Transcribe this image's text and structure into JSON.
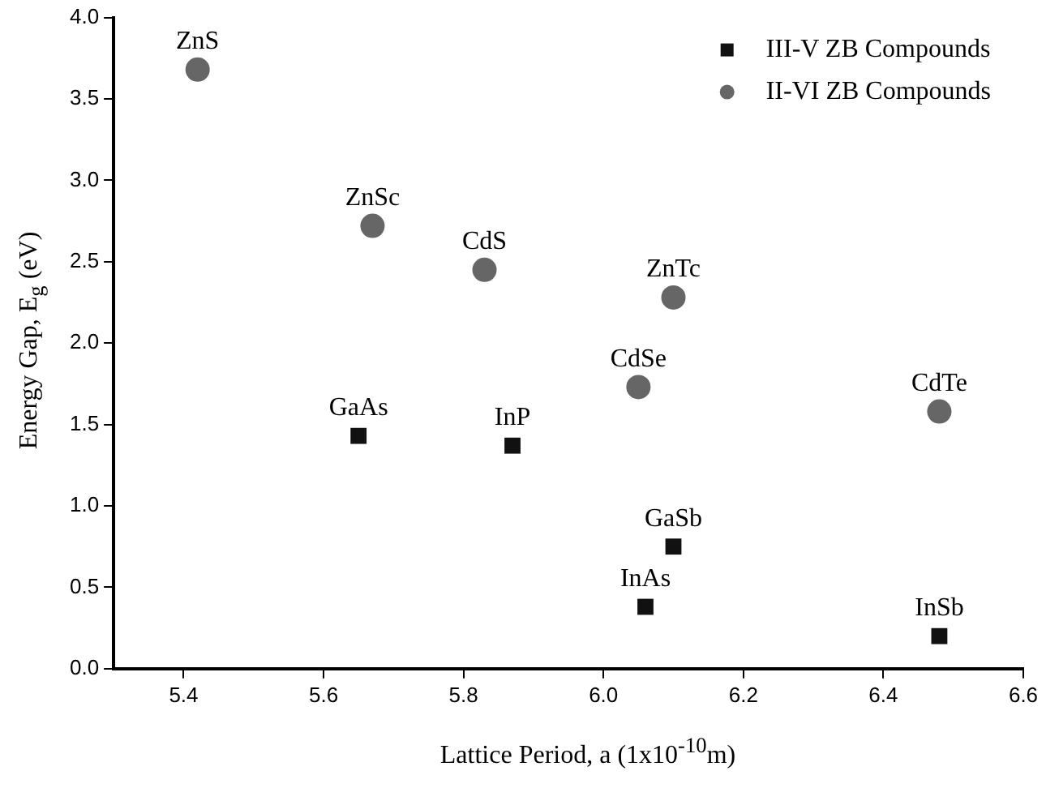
{
  "chart_data": {
    "type": "scatter",
    "xlabel": "Lattice Period, a (1x10$^{-10}$m)",
    "ylabel": "Energy Gap, E$_{g}$ (eV)",
    "xlim": [
      5.3,
      6.6
    ],
    "xticks": [
      5.4,
      5.6,
      5.8,
      {
        "value": 6,
        "label": "6.0"
      },
      6.2,
      6.4,
      6.6
    ],
    "ylim": [
      0,
      4.0
    ],
    "yticks": [
      {
        "value": 0,
        "label": "0.0"
      },
      {
        "value": 0.5,
        "label": "0.5"
      },
      {
        "value": 1,
        "label": "1.0"
      },
      {
        "value": 1.5,
        "label": "1.5"
      },
      {
        "value": 2,
        "label": "2.0"
      },
      {
        "value": 2.5,
        "label": "2.5"
      },
      {
        "value": 3,
        "label": "3.0"
      },
      {
        "value": 3.5,
        "label": "3.5"
      },
      {
        "value": 4,
        "label": "4.0"
      }
    ],
    "grid": false,
    "legend": "top right",
    "series": [
      {
        "name": "III-V ZB Compounds",
        "color": "#111111",
        "marker": "square",
        "x": [
          5.65,
          5.87,
          6.1,
          6.06,
          6.48
        ],
        "values": [
          1.43,
          1.37,
          0.75,
          0.38,
          0.2
        ]
      },
      {
        "name": "II-VI ZB Compounds",
        "color": "#666666",
        "marker": "circle",
        "x": [
          5.42,
          5.67,
          5.83,
          6.1,
          6.05,
          6.48
        ],
        "values": [
          3.68,
          2.72,
          2.45,
          2.28,
          1.73,
          1.58
        ]
      }
    ],
    "annotations": [
      {
        "text": "GaAs",
        "x": 5.65,
        "y": 1.43
      },
      {
        "text": "InP",
        "x": 5.87,
        "y": 1.37
      },
      {
        "text": "GaSb",
        "x": 6.1,
        "y": 0.75
      },
      {
        "text": "InAs",
        "x": 6.06,
        "y": 0.38
      },
      {
        "text": "InSb",
        "x": 6.48,
        "y": 0.2
      },
      {
        "text": "ZnS",
        "x": 5.42,
        "y": 3.68
      },
      {
        "text": "ZnSc",
        "x": 5.67,
        "y": 2.72
      },
      {
        "text": "CdS",
        "x": 5.83,
        "y": 2.45
      },
      {
        "text": "ZnTc",
        "x": 6.1,
        "y": 2.28
      },
      {
        "text": "CdSe",
        "x": 6.05,
        "y": 1.73
      },
      {
        "text": "CdTe",
        "x": 6.48,
        "y": 1.58
      }
    ]
  }
}
